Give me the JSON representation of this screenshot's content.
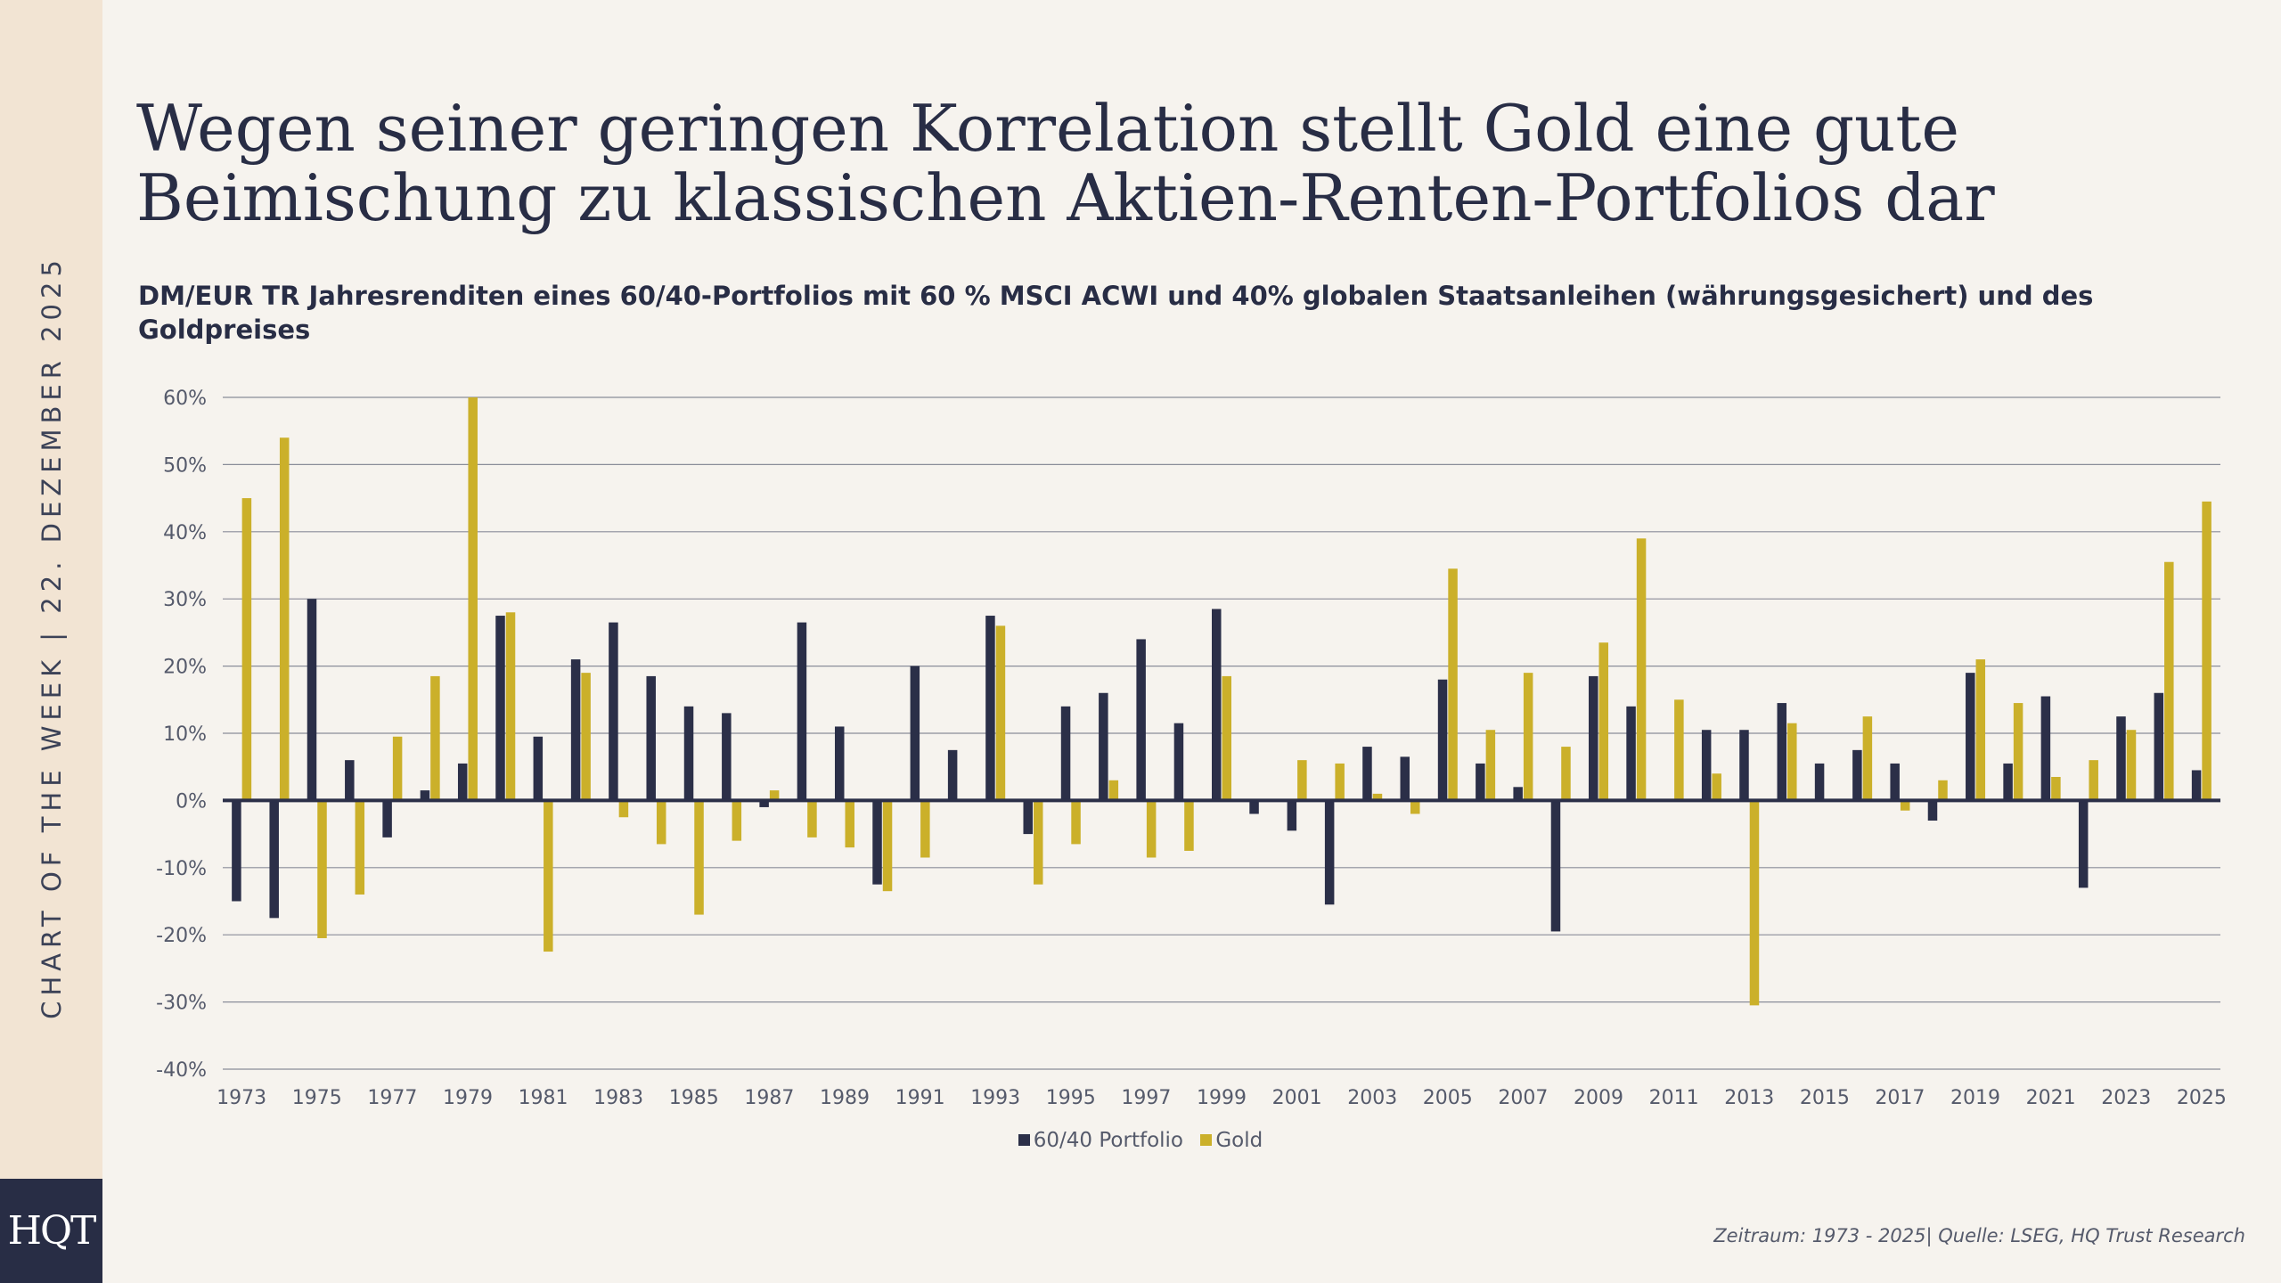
{
  "sidebar": {
    "label": "CHART OF THE WEEK | 22. DEZEMBER 2025",
    "logo_text": "HQT"
  },
  "title": "Wegen seiner geringen Korrelation stellt Gold eine gute Beimischung zu klassischen Aktien-Renten-Portfolios dar",
  "subtitle": "DM/EUR TR Jahresrenditen eines 60/40-Portfolios mit 60 % MSCI ACWI und 40% globalen Staatsanleihen (währungsgesichert) und des Goldpreises",
  "source": "Zeitraum: 1973 - 2025| Quelle: LSEG, HQ Trust Research",
  "colors": {
    "portfolio": "#2b2f48",
    "gold": "#cbb02a",
    "grid": "#8a8d99"
  },
  "chart_data": {
    "type": "bar",
    "x": [
      1973,
      1974,
      1975,
      1976,
      1977,
      1978,
      1979,
      1980,
      1981,
      1982,
      1983,
      1984,
      1985,
      1986,
      1987,
      1988,
      1989,
      1990,
      1991,
      1992,
      1993,
      1994,
      1995,
      1996,
      1997,
      1998,
      1999,
      2000,
      2001,
      2002,
      2003,
      2004,
      2005,
      2006,
      2007,
      2008,
      2009,
      2010,
      2011,
      2012,
      2013,
      2014,
      2015,
      2016,
      2017,
      2018,
      2019,
      2020,
      2021,
      2022,
      2023,
      2024,
      2025
    ],
    "x_tick_labels": [
      "1973",
      "1975",
      "1977",
      "1979",
      "1981",
      "1983",
      "1985",
      "1987",
      "1989",
      "1991",
      "1993",
      "1995",
      "1997",
      "1999",
      "2001",
      "2003",
      "2005",
      "2007",
      "2009",
      "2011",
      "2013",
      "2015",
      "2017",
      "2019",
      "2021",
      "2023",
      "2025"
    ],
    "y_tick_labels": [
      "60%",
      "50%",
      "40%",
      "30%",
      "20%",
      "10%",
      "0%",
      "-10%",
      "-20%",
      "-30%",
      "-40%"
    ],
    "ylim": [
      -40,
      60
    ],
    "grid": true,
    "legend_position": "bottom-center",
    "series": [
      {
        "name": "60/40 Portfolio",
        "color": "#2b2f48",
        "values": [
          -15,
          -17.5,
          30,
          6,
          -5.5,
          1.5,
          5.5,
          27.5,
          9.5,
          21,
          26.5,
          18.5,
          14,
          13,
          -1,
          26.5,
          11,
          -12.5,
          20,
          7.5,
          27.5,
          -5,
          14,
          16,
          24,
          11.5,
          28.5,
          -2,
          -4.5,
          -15.5,
          8,
          6.5,
          18,
          5.5,
          2,
          -19.5,
          18.5,
          14,
          0,
          10.5,
          10.5,
          14.5,
          5.5,
          7.5,
          5.5,
          -3,
          19,
          5.5,
          15.5,
          -13,
          12.5,
          16,
          4.5
        ]
      },
      {
        "name": "Gold",
        "color": "#cbb02a",
        "values": [
          45,
          54,
          -20.5,
          -14,
          9.5,
          18.5,
          60,
          28,
          -22.5,
          19,
          -2.5,
          -6.5,
          -17,
          -6,
          1.5,
          -5.5,
          -7,
          -13.5,
          -8.5,
          0,
          26,
          -12.5,
          -6.5,
          3,
          -8.5,
          -7.5,
          18.5,
          0,
          6,
          5.5,
          1,
          -2,
          34.5,
          10.5,
          19,
          8,
          23.5,
          39,
          15,
          4,
          -30.5,
          11.5,
          0,
          12.5,
          -1.5,
          3,
          21,
          14.5,
          3.5,
          6,
          10.5,
          35.5,
          44.5
        ]
      }
    ]
  }
}
